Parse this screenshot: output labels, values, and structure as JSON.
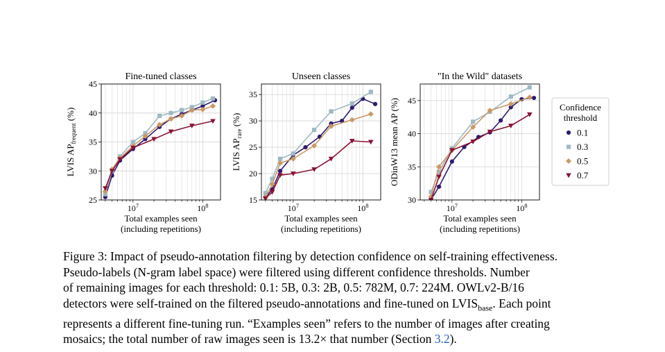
{
  "colors": {
    "0.1": "#2e1a6e",
    "0.3": "#9fb9c3",
    "0.5": "#c99a66",
    "0.7": "#8a1233",
    "grid": "#d9d9d9"
  },
  "legend": {
    "title_lines": [
      "Confidence",
      "threshold"
    ],
    "entries": [
      {
        "label": "0.1",
        "marker": "circle"
      },
      {
        "label": "0.3",
        "marker": "square"
      },
      {
        "label": "0.5",
        "marker": "diamond"
      },
      {
        "label": "0.7",
        "marker": "triangle-down"
      }
    ]
  },
  "chart_data": [
    {
      "type": "line",
      "title": "Fine-tuned classes",
      "ylabel_main": "LVIS AP",
      "ylabel_sub": "frequent",
      "ylabel_unit": " (%)",
      "xlabel_lines": [
        "Total examples seen",
        "(including repetitions)"
      ],
      "x_scale": "log",
      "xlim": [
        3500000,
        180000000
      ],
      "ylim": [
        25,
        45
      ],
      "yticks": [
        25,
        30,
        35,
        40,
        45
      ],
      "xtick_labels": [
        {
          "value": 10000000,
          "base": "10",
          "exp": "7"
        },
        {
          "value": 100000000,
          "base": "10",
          "exp": "8"
        }
      ],
      "series": [
        {
          "name": "0.1",
          "x": [
            4000000,
            5000000,
            6500000,
            10000000,
            15000000,
            24000000,
            35000000,
            50000000,
            70000000,
            100000000,
            150000000
          ],
          "y": [
            25.5,
            29.2,
            31.8,
            33.8,
            35.5,
            37.6,
            39.0,
            39.8,
            40.5,
            41.2,
            42.2
          ]
        },
        {
          "name": "0.3",
          "x": [
            4000000,
            5000000,
            6500000,
            10000000,
            15000000,
            24000000,
            35000000,
            50000000,
            70000000,
            100000000,
            140000000
          ],
          "y": [
            26.0,
            30.0,
            32.5,
            35.0,
            36.5,
            39.5,
            40.0,
            40.5,
            41.0,
            41.8,
            42.5
          ]
        },
        {
          "name": "0.5",
          "x": [
            4000000,
            5000000,
            6500000,
            10000000,
            15000000,
            24000000,
            35000000,
            50000000,
            70000000,
            100000000,
            140000000
          ],
          "y": [
            26.5,
            30.3,
            32.2,
            34.3,
            36.0,
            38.0,
            39.0,
            39.5,
            40.5,
            40.6,
            41.2
          ]
        },
        {
          "name": "0.7",
          "x": [
            4000000,
            5000000,
            6500000,
            10000000,
            20000000,
            35000000,
            70000000,
            140000000
          ],
          "y": [
            27.0,
            30.0,
            32.0,
            34.0,
            35.5,
            36.8,
            37.8,
            38.6
          ]
        }
      ]
    },
    {
      "type": "line",
      "title": "Unseen classes",
      "ylabel_main": "LVIS AP",
      "ylabel_sub": "rare",
      "ylabel_unit": " (%)",
      "xlabel_lines": [
        "Total examples seen",
        "(including repetitions)"
      ],
      "x_scale": "log",
      "xlim": [
        3500000,
        180000000
      ],
      "ylim": [
        15,
        37
      ],
      "yticks": [
        15,
        20,
        25,
        30,
        35
      ],
      "xtick_labels": [
        {
          "value": 10000000,
          "base": "10",
          "exp": "7"
        },
        {
          "value": 100000000,
          "base": "10",
          "exp": "8"
        }
      ],
      "series": [
        {
          "name": "0.1",
          "x": [
            4000000,
            5000000,
            6500000,
            10000000,
            15000000,
            24000000,
            35000000,
            50000000,
            70000000,
            100000000,
            150000000
          ],
          "y": [
            15.5,
            17.0,
            20.5,
            23.5,
            25.0,
            27.0,
            29.5,
            30.0,
            32.5,
            34.2,
            33.2
          ]
        },
        {
          "name": "0.3",
          "x": [
            4000000,
            5000000,
            6500000,
            10000000,
            20000000,
            35000000,
            70000000,
            130000000
          ],
          "y": [
            16.3,
            19.0,
            22.8,
            23.8,
            28.3,
            31.8,
            33.3,
            35.5
          ]
        },
        {
          "name": "0.5",
          "x": [
            4000000,
            5000000,
            6500000,
            10000000,
            20000000,
            35000000,
            70000000,
            130000000
          ],
          "y": [
            15.5,
            18.0,
            22.0,
            22.8,
            25.3,
            29.0,
            30.2,
            31.3
          ]
        },
        {
          "name": "0.7",
          "x": [
            4000000,
            5000000,
            6500000,
            10000000,
            20000000,
            35000000,
            70000000,
            130000000
          ],
          "y": [
            15.3,
            16.5,
            19.7,
            20.0,
            20.8,
            22.8,
            26.2,
            26.0
          ]
        }
      ]
    },
    {
      "type": "line",
      "title": "\"In the Wild\" datasets",
      "ylabel_main": "ODinW13 mean AP",
      "ylabel_sub": "",
      "ylabel_unit": " (%)",
      "xlabel_lines": [
        "Total examples seen",
        "(including repetitions)"
      ],
      "x_scale": "log",
      "xlim": [
        3500000,
        180000000
      ],
      "ylim": [
        30,
        47.5
      ],
      "yticks": [
        30,
        35,
        40,
        45
      ],
      "xtick_labels": [
        {
          "value": 10000000,
          "base": "10",
          "exp": "7"
        },
        {
          "value": 100000000,
          "base": "10",
          "exp": "8"
        }
      ],
      "series": [
        {
          "name": "0.1",
          "x": [
            5000000,
            6500000,
            10000000,
            15000000,
            24000000,
            35000000,
            50000000,
            70000000,
            100000000,
            150000000
          ],
          "y": [
            30.0,
            32.0,
            35.8,
            38.0,
            39.5,
            40.2,
            42.0,
            44.0,
            45.2,
            45.4
          ]
        },
        {
          "name": "0.3",
          "x": [
            5000000,
            6500000,
            10000000,
            20000000,
            35000000,
            70000000,
            130000000
          ],
          "y": [
            31.2,
            34.2,
            37.8,
            41.8,
            43.3,
            45.6,
            47.0
          ]
        },
        {
          "name": "0.5",
          "x": [
            5000000,
            6500000,
            10000000,
            20000000,
            35000000,
            70000000,
            130000000
          ],
          "y": [
            30.5,
            35.0,
            37.5,
            41.0,
            43.5,
            44.5,
            45.5
          ]
        },
        {
          "name": "0.7",
          "x": [
            5000000,
            6500000,
            10000000,
            20000000,
            35000000,
            70000000,
            130000000
          ],
          "y": [
            30.0,
            33.5,
            37.5,
            38.8,
            40.3,
            41.2,
            42.9
          ]
        }
      ]
    }
  ],
  "caption": {
    "line1": "Figure 3: Impact of pseudo-annotation filtering by detection confidence on self-training effectiveness.",
    "line2": "Pseudo-labels (N-gram label space) were filtered using different confidence thresholds.  Number",
    "line3": "of remaining images for each threshold: 0.1:  5B, 0.3:  2B, 0.5:  782M, 0.7:  224M. OWLv2-B/16",
    "line4_pre": "detectors were self-trained on the filtered pseudo-annotations and fine-tuned on LVIS",
    "line4_sub": "base",
    "line4_post": ". Each point",
    "line5": "represents a different fine-tuning run. “Examples seen” refers to the number of images after creating",
    "line6_pre": "mosaics; the total number of raw images seen is 13.2× that number (Section ",
    "line6_link": "3.2",
    "line6_post": ")."
  }
}
